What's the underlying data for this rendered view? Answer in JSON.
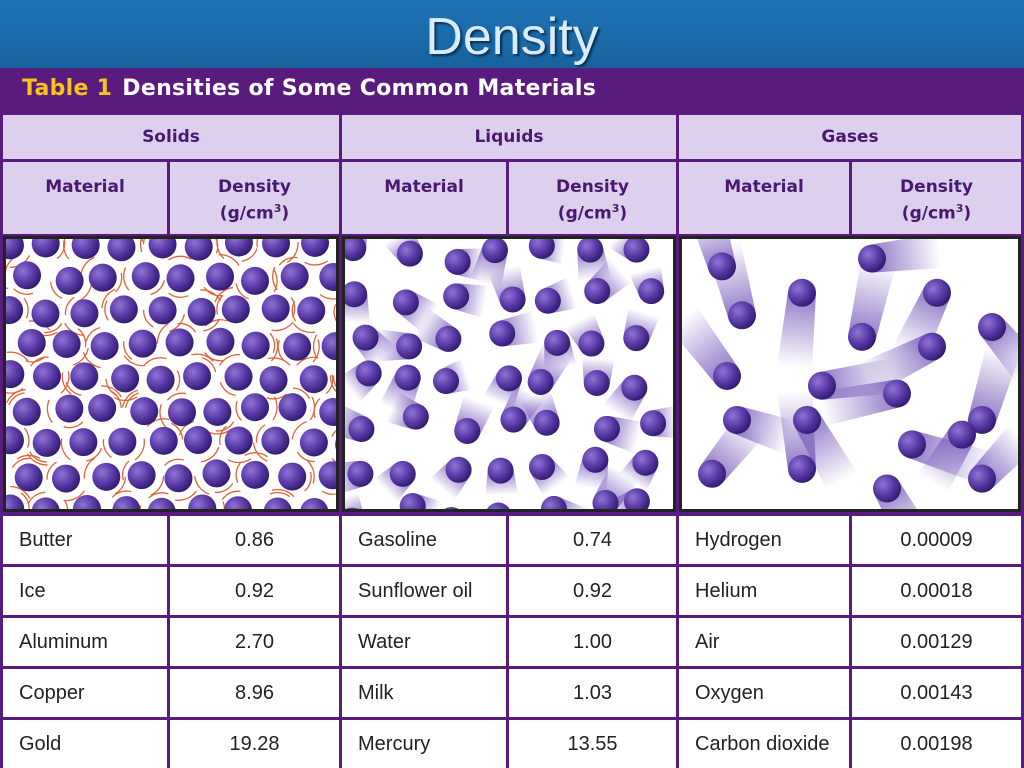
{
  "slide_title": "Density",
  "table": {
    "number": "Table 1",
    "caption": "Densities of Some Common Materials",
    "groups": [
      {
        "name": "Solids",
        "material_header": "Material",
        "density_header": "Density",
        "unit_header": "(g/cm3)",
        "rows": [
          {
            "material": "Butter",
            "density": "0.86"
          },
          {
            "material": "Ice",
            "density": "0.92"
          },
          {
            "material": "Aluminum",
            "density": "2.70"
          },
          {
            "material": "Copper",
            "density": "8.96"
          },
          {
            "material": "Gold",
            "density": "19.28"
          }
        ]
      },
      {
        "name": "Liquids",
        "material_header": "Material",
        "density_header": "Density",
        "unit_header": "(g/cm3)",
        "rows": [
          {
            "material": "Gasoline",
            "density": "0.74"
          },
          {
            "material": "Sunflower oil",
            "density": "0.92"
          },
          {
            "material": "Water",
            "density": "1.00"
          },
          {
            "material": "Milk",
            "density": "1.03"
          },
          {
            "material": "Mercury",
            "density": "13.55"
          }
        ]
      },
      {
        "name": "Gases",
        "material_header": "Material",
        "density_header": "Density",
        "unit_header": "(g/cm3)",
        "rows": [
          {
            "material": "Hydrogen",
            "density": "0.00009"
          },
          {
            "material": "Helium",
            "density": "0.00018"
          },
          {
            "material": "Air",
            "density": "0.00129"
          },
          {
            "material": "Oxygen",
            "density": "0.00143"
          },
          {
            "material": "Carbon dioxide",
            "density": "0.00198"
          }
        ]
      }
    ]
  },
  "colors": {
    "title_bar": "#1a68a8",
    "table_frame": "#5a1b7e",
    "header_fill": "#ddd0ee",
    "table_number": "#f6c21b",
    "particle": "#5b3aa6"
  }
}
